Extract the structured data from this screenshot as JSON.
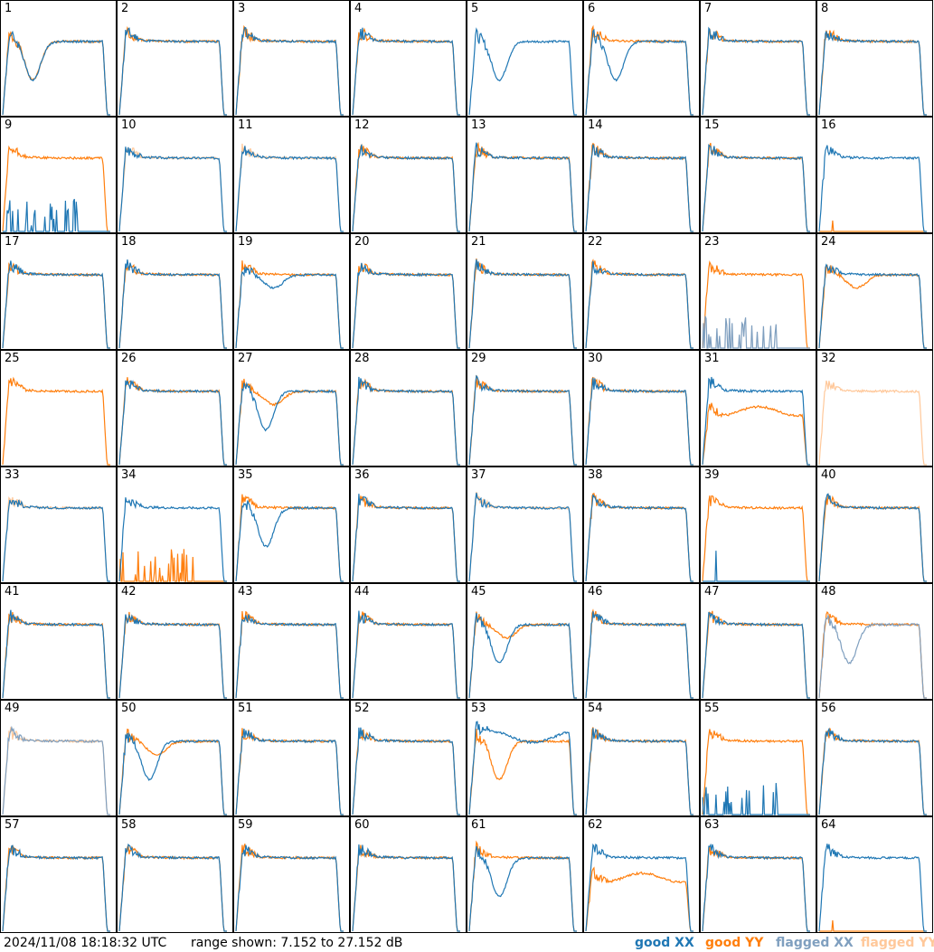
{
  "footer": {
    "timestamp": "2024/11/08 18:18:32 UTC",
    "range": "range shown: 7.152 to 27.152 dB"
  },
  "legend": [
    {
      "word": "good",
      "key": "XX",
      "color": "#1f77b4"
    },
    {
      "word": "good",
      "key": "YY",
      "color": "#ff7f0e"
    },
    {
      "word": "flagged",
      "key": "XX",
      "color": "#7f9fbf"
    },
    {
      "word": "flagged",
      "key": "YY",
      "color": "#ffc89a"
    }
  ],
  "chart_data": {
    "type": "line",
    "layout": "8x8 small multiples",
    "range_db": [
      7.152,
      27.152
    ],
    "series_colors": {
      "good_XX": "#1f77b4",
      "good_YY": "#ff7f0e",
      "flagged_XX": "#7f9fbf",
      "flagged_YY": "#ffc89a"
    },
    "panels": [
      {
        "label": "1",
        "xx": "dip",
        "yy": "dip",
        "note": "both deep dip near start"
      },
      {
        "label": "2",
        "xx": "flat",
        "yy": "flat"
      },
      {
        "label": "3",
        "xx": "flat",
        "yy": "flat"
      },
      {
        "label": "4",
        "xx": "flat",
        "yy": "flat"
      },
      {
        "label": "5",
        "xx": "dip",
        "yy": "none"
      },
      {
        "label": "6",
        "xx": "dip",
        "yy": "flat"
      },
      {
        "label": "7",
        "xx": "flat",
        "yy": "flat"
      },
      {
        "label": "8",
        "xx": "flat",
        "yy": "flat"
      },
      {
        "label": "9",
        "xx": "spikes",
        "yy": "flat"
      },
      {
        "label": "10",
        "xx": "flat",
        "yy": "flagged"
      },
      {
        "label": "11",
        "xx": "flat",
        "yy": "flagged"
      },
      {
        "label": "12",
        "xx": "flat",
        "yy": "flat"
      },
      {
        "label": "13",
        "xx": "flat",
        "yy": "flat"
      },
      {
        "label": "14",
        "xx": "flat",
        "yy": "flat"
      },
      {
        "label": "15",
        "xx": "flat",
        "yy": "flat"
      },
      {
        "label": "16",
        "xx": "flat",
        "yy": "tiny"
      },
      {
        "label": "17",
        "xx": "flat",
        "yy": "flat"
      },
      {
        "label": "18",
        "xx": "flat",
        "yy": "flat"
      },
      {
        "label": "19",
        "xx": "wave",
        "yy": "flat"
      },
      {
        "label": "20",
        "xx": "flat",
        "yy": "flat"
      },
      {
        "label": "21",
        "xx": "flat",
        "yy": "flat"
      },
      {
        "label": "22",
        "xx": "flat",
        "yy": "flat"
      },
      {
        "label": "23",
        "xx": "flagged-noisy",
        "yy": "flat"
      },
      {
        "label": "24",
        "xx": "flat",
        "yy": "wave"
      },
      {
        "label": "25",
        "xx": "none",
        "yy": "flat"
      },
      {
        "label": "26",
        "xx": "flat",
        "yy": "flat"
      },
      {
        "label": "27",
        "xx": "dip",
        "yy": "wave"
      },
      {
        "label": "28",
        "xx": "flat",
        "yy": "flat"
      },
      {
        "label": "29",
        "xx": "flat",
        "yy": "flat"
      },
      {
        "label": "30",
        "xx": "flat",
        "yy": "flat"
      },
      {
        "label": "31",
        "xx": "flat",
        "yy": "wave-low"
      },
      {
        "label": "32",
        "xx": "none",
        "yy": "flagged"
      },
      {
        "label": "33",
        "xx": "flat",
        "yy": "flagged"
      },
      {
        "label": "34",
        "xx": "flat",
        "yy": "spikes"
      },
      {
        "label": "35",
        "xx": "dip",
        "yy": "flat"
      },
      {
        "label": "36",
        "xx": "flat",
        "yy": "flat"
      },
      {
        "label": "37",
        "xx": "flat",
        "yy": "flagged"
      },
      {
        "label": "38",
        "xx": "flat",
        "yy": "flat"
      },
      {
        "label": "39",
        "xx": "spike1",
        "yy": "flat"
      },
      {
        "label": "40",
        "xx": "flat",
        "yy": "flat"
      },
      {
        "label": "41",
        "xx": "flat",
        "yy": "flat"
      },
      {
        "label": "42",
        "xx": "flat",
        "yy": "flat"
      },
      {
        "label": "43",
        "xx": "flat",
        "yy": "flat"
      },
      {
        "label": "44",
        "xx": "flat",
        "yy": "flat"
      },
      {
        "label": "45",
        "xx": "dip",
        "yy": "wave"
      },
      {
        "label": "46",
        "xx": "flat",
        "yy": "flat"
      },
      {
        "label": "47",
        "xx": "flat",
        "yy": "flat"
      },
      {
        "label": "48",
        "xx": "flagged-dip",
        "yy": "flat"
      },
      {
        "label": "49",
        "xx": "flagged",
        "yy": "flagged"
      },
      {
        "label": "50",
        "xx": "dip",
        "yy": "wave"
      },
      {
        "label": "51",
        "xx": "flat",
        "yy": "flat"
      },
      {
        "label": "52",
        "xx": "flat",
        "yy": "flat"
      },
      {
        "label": "53",
        "xx": "wave-high",
        "yy": "dip"
      },
      {
        "label": "54",
        "xx": "flat",
        "yy": "flat"
      },
      {
        "label": "55",
        "xx": "spikes",
        "yy": "flat"
      },
      {
        "label": "56",
        "xx": "flat",
        "yy": "flat"
      },
      {
        "label": "57",
        "xx": "flat",
        "yy": "flat"
      },
      {
        "label": "58",
        "xx": "flat",
        "yy": "flat"
      },
      {
        "label": "59",
        "xx": "flat",
        "yy": "flat"
      },
      {
        "label": "60",
        "xx": "flat",
        "yy": "flat"
      },
      {
        "label": "61",
        "xx": "dip",
        "yy": "flat"
      },
      {
        "label": "62",
        "xx": "flat",
        "yy": "wave-low"
      },
      {
        "label": "63",
        "xx": "flat",
        "yy": "flat"
      },
      {
        "label": "64",
        "xx": "flat",
        "yy": "tiny"
      }
    ]
  }
}
